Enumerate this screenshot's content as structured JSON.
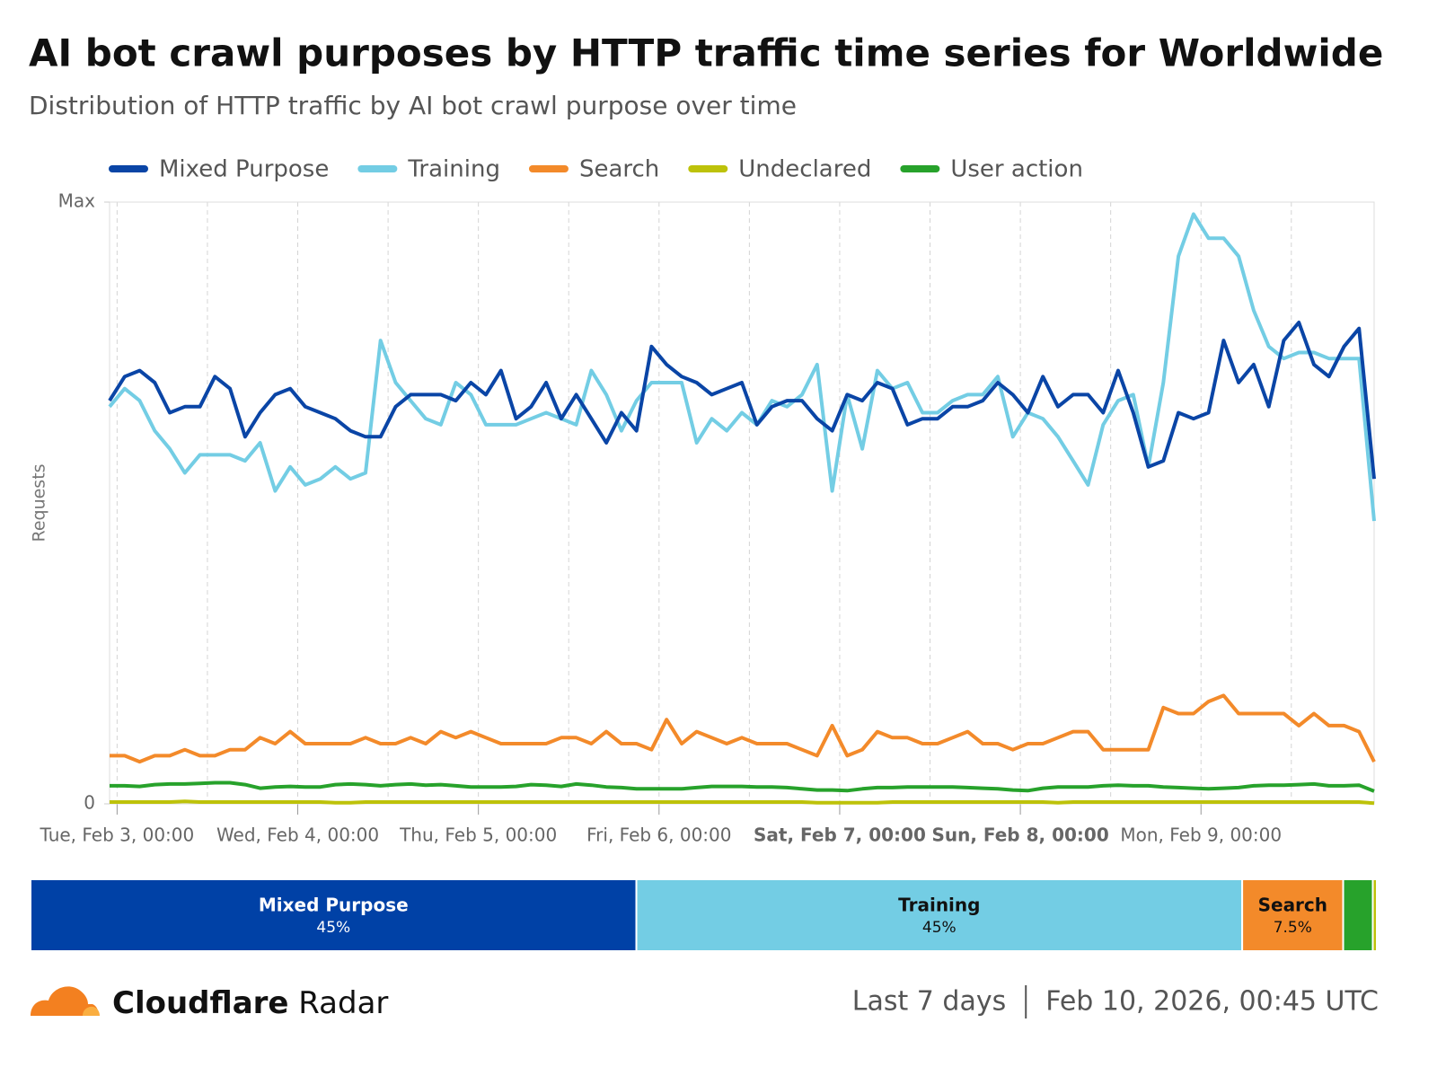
{
  "header": {
    "title": "AI bot crawl purposes by HTTP traffic time series for Worldwide",
    "subtitle": "Distribution of HTTP traffic by AI bot crawl purpose over time"
  },
  "chart_data": [
    {
      "type": "line",
      "y_label": "Requests",
      "x": [
        "Feb 2, 23:00",
        "Feb 3, 01:00",
        "Feb 3, 03:00",
        "Feb 3, 05:00",
        "Feb 3, 07:00",
        "Feb 3, 09:00",
        "Feb 3, 11:00",
        "Feb 3, 13:00",
        "Feb 3, 15:00",
        "Feb 3, 17:00",
        "Feb 3, 19:00",
        "Feb 3, 21:00",
        "Feb 3, 23:00",
        "Feb 4, 01:00",
        "Feb 4, 03:00",
        "Feb 4, 05:00",
        "Feb 4, 07:00",
        "Feb 4, 09:00",
        "Feb 4, 11:00",
        "Feb 4, 13:00",
        "Feb 4, 15:00",
        "Feb 4, 17:00",
        "Feb 4, 19:00",
        "Feb 4, 21:00",
        "Feb 4, 23:00",
        "Feb 5, 01:00",
        "Feb 5, 03:00",
        "Feb 5, 05:00",
        "Feb 5, 07:00",
        "Feb 5, 09:00",
        "Feb 5, 11:00",
        "Feb 5, 13:00",
        "Feb 5, 15:00",
        "Feb 5, 17:00",
        "Feb 5, 19:00",
        "Feb 5, 21:00",
        "Feb 5, 23:00",
        "Feb 6, 01:00",
        "Feb 6, 03:00",
        "Feb 6, 05:00",
        "Feb 6, 07:00",
        "Feb 6, 09:00",
        "Feb 6, 11:00",
        "Feb 6, 13:00",
        "Feb 6, 15:00",
        "Feb 6, 17:00",
        "Feb 6, 19:00",
        "Feb 6, 21:00",
        "Feb 6, 23:00",
        "Feb 7, 01:00",
        "Feb 7, 03:00",
        "Feb 7, 05:00",
        "Feb 7, 07:00",
        "Feb 7, 09:00",
        "Feb 7, 11:00",
        "Feb 7, 13:00",
        "Feb 7, 15:00",
        "Feb 7, 17:00",
        "Feb 7, 19:00",
        "Feb 7, 21:00",
        "Feb 7, 23:00",
        "Feb 8, 01:00",
        "Feb 8, 03:00",
        "Feb 8, 05:00",
        "Feb 8, 07:00",
        "Feb 8, 09:00",
        "Feb 8, 11:00",
        "Feb 8, 13:00",
        "Feb 8, 15:00",
        "Feb 8, 17:00",
        "Feb 8, 19:00",
        "Feb 8, 21:00",
        "Feb 8, 23:00",
        "Feb 9, 01:00",
        "Feb 9, 03:00",
        "Feb 9, 05:00",
        "Feb 9, 07:00",
        "Feb 9, 09:00",
        "Feb 9, 11:00",
        "Feb 9, 13:00",
        "Feb 9, 15:00",
        "Feb 9, 17:00",
        "Feb 9, 19:00",
        "Feb 9, 21:00",
        "Feb 9, 23:00"
      ],
      "xlim": [
        "Feb 2, 23:00",
        "Feb 9, 23:00"
      ],
      "xticks": [
        {
          "value": "Feb 3, 00:00",
          "label": "Tue, Feb 3, 00:00",
          "bold": false
        },
        {
          "value": "Feb 4, 00:00",
          "label": "Wed, Feb 4, 00:00",
          "bold": false
        },
        {
          "value": "Feb 5, 00:00",
          "label": "Thu, Feb 5, 00:00",
          "bold": false
        },
        {
          "value": "Feb 6, 00:00",
          "label": "Fri, Feb 6, 00:00",
          "bold": false
        },
        {
          "value": "Feb 7, 00:00",
          "label": "Sat, Feb 7, 00:00",
          "bold": true
        },
        {
          "value": "Feb 8, 00:00",
          "label": "Sun, Feb 8, 00:00",
          "bold": true
        },
        {
          "value": "Feb 9, 00:00",
          "label": "Mon, Feb 9, 00:00",
          "bold": false
        }
      ],
      "ylim": [
        0,
        100
      ],
      "yticks": [
        0,
        {
          "value": 100,
          "label": "Max"
        }
      ],
      "series": [
        {
          "name": "Mixed Purpose",
          "color": "#0a45a6",
          "values": [
            67,
            71,
            72,
            70,
            65,
            66,
            66,
            71,
            69,
            61,
            65,
            68,
            69,
            66,
            65,
            64,
            62,
            61,
            61,
            66,
            68,
            68,
            68,
            67,
            70,
            68,
            72,
            64,
            66,
            70,
            64,
            68,
            64,
            60,
            65,
            62,
            76,
            73,
            71,
            70,
            68,
            69,
            70,
            63,
            66,
            67,
            67,
            64,
            62,
            68,
            67,
            70,
            69,
            63,
            64,
            64,
            66,
            66,
            67,
            70,
            68,
            65,
            71,
            66,
            68,
            68,
            65,
            72,
            65,
            56,
            57,
            65,
            64,
            65,
            77,
            70,
            73,
            66,
            77,
            80,
            73,
            71,
            76,
            79,
            54
          ]
        },
        {
          "name": "Training",
          "color": "#73cde4",
          "values": [
            66,
            69,
            67,
            62,
            59,
            55,
            58,
            58,
            58,
            57,
            60,
            52,
            56,
            53,
            54,
            56,
            54,
            55,
            77,
            70,
            67,
            64,
            63,
            70,
            68,
            63,
            63,
            63,
            64,
            65,
            64,
            63,
            72,
            68,
            62,
            67,
            70,
            70,
            70,
            60,
            64,
            62,
            65,
            63,
            67,
            66,
            68,
            73,
            52,
            68,
            59,
            72,
            69,
            70,
            65,
            65,
            67,
            68,
            68,
            71,
            61,
            65,
            64,
            61,
            57,
            53,
            63,
            67,
            68,
            56,
            70,
            91,
            98,
            94,
            94,
            91,
            82,
            76,
            74,
            75,
            75,
            74,
            74,
            74,
            47
          ]
        },
        {
          "name": "Search",
          "color": "#f38a2a",
          "values": [
            8,
            8,
            7,
            8,
            8,
            9,
            8,
            8,
            9,
            9,
            11,
            10,
            12,
            10,
            10,
            10,
            10,
            11,
            10,
            10,
            11,
            10,
            12,
            11,
            12,
            11,
            10,
            10,
            10,
            10,
            11,
            11,
            10,
            12,
            10,
            10,
            9,
            14,
            10,
            12,
            11,
            10,
            11,
            10,
            10,
            10,
            9,
            8,
            13,
            8,
            9,
            12,
            11,
            11,
            10,
            10,
            11,
            12,
            10,
            10,
            9,
            10,
            10,
            11,
            12,
            12,
            9,
            9,
            9,
            9,
            16,
            15,
            15,
            17,
            18,
            15,
            15,
            15,
            15,
            13,
            15,
            13,
            13,
            12,
            7
          ]
        },
        {
          "name": "Undeclared",
          "color": "#bdc20a",
          "values": [
            0.3,
            0.3,
            0.3,
            0.3,
            0.3,
            0.4,
            0.3,
            0.3,
            0.3,
            0.3,
            0.3,
            0.3,
            0.3,
            0.3,
            0.3,
            0.2,
            0.2,
            0.3,
            0.3,
            0.3,
            0.3,
            0.3,
            0.3,
            0.3,
            0.3,
            0.3,
            0.3,
            0.3,
            0.3,
            0.3,
            0.3,
            0.3,
            0.3,
            0.3,
            0.3,
            0.3,
            0.3,
            0.3,
            0.3,
            0.3,
            0.3,
            0.3,
            0.3,
            0.3,
            0.3,
            0.3,
            0.3,
            0.2,
            0.2,
            0.2,
            0.2,
            0.2,
            0.3,
            0.3,
            0.3,
            0.3,
            0.3,
            0.3,
            0.3,
            0.3,
            0.3,
            0.3,
            0.3,
            0.2,
            0.3,
            0.3,
            0.3,
            0.3,
            0.3,
            0.3,
            0.3,
            0.3,
            0.3,
            0.3,
            0.3,
            0.3,
            0.3,
            0.3,
            0.3,
            0.3,
            0.3,
            0.3,
            0.3,
            0.3,
            0.1
          ]
        },
        {
          "name": "User action",
          "color": "#27a22b",
          "values": [
            3.0,
            3.0,
            2.9,
            3.2,
            3.3,
            3.3,
            3.4,
            3.5,
            3.5,
            3.2,
            2.6,
            2.8,
            2.9,
            2.8,
            2.8,
            3.2,
            3.3,
            3.2,
            3.0,
            3.2,
            3.3,
            3.1,
            3.2,
            3.0,
            2.8,
            2.8,
            2.8,
            2.9,
            3.2,
            3.1,
            2.9,
            3.3,
            3.1,
            2.8,
            2.7,
            2.5,
            2.5,
            2.5,
            2.5,
            2.7,
            2.9,
            2.9,
            2.9,
            2.8,
            2.8,
            2.7,
            2.5,
            2.3,
            2.3,
            2.2,
            2.5,
            2.7,
            2.7,
            2.8,
            2.8,
            2.8,
            2.8,
            2.7,
            2.6,
            2.5,
            2.3,
            2.2,
            2.6,
            2.8,
            2.8,
            2.8,
            3.0,
            3.1,
            3.0,
            3.0,
            2.8,
            2.7,
            2.6,
            2.5,
            2.6,
            2.7,
            3.0,
            3.1,
            3.1,
            3.2,
            3.3,
            3.0,
            3.0,
            3.1,
            2.1
          ]
        }
      ]
    },
    {
      "type": "share-bar",
      "segments": [
        {
          "name": "Mixed Purpose",
          "value": 45,
          "value_label": "45%",
          "color": "#0041a6",
          "text_color": "#ffffff"
        },
        {
          "name": "Training",
          "value": 45,
          "value_label": "45%",
          "color": "#73cde4",
          "text_color": "#111111"
        },
        {
          "name": "Search",
          "value": 7.5,
          "value_label": "7.5%",
          "color": "#f38a2a",
          "text_color": "#111111"
        },
        {
          "name": null,
          "value": 2.2,
          "value_label": null,
          "color": "#27a22b",
          "text_color": null
        },
        {
          "name": null,
          "value": 0.3,
          "value_label": null,
          "color": "#bdc20a",
          "text_color": null
        }
      ]
    }
  ],
  "footer": {
    "brand": "Cloudflare",
    "product": "Radar",
    "period": "Last 7 days",
    "timestamp": "Feb 10, 2026, 00:45 UTC"
  }
}
